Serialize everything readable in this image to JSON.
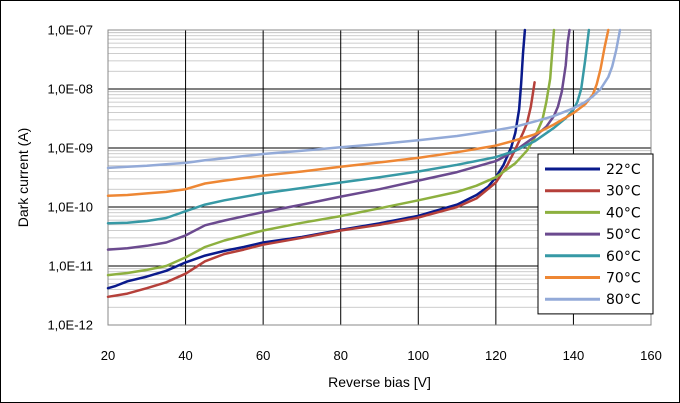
{
  "chart_data": {
    "type": "line",
    "title": "",
    "xlabel": "Reverse bias [V]",
    "ylabel": "Dark current  (A)",
    "xlim": [
      20,
      160
    ],
    "ylim": [
      1e-12,
      1e-07
    ],
    "y_scale": "log",
    "x_ticks": [
      20,
      40,
      60,
      80,
      100,
      120,
      140,
      160
    ],
    "x_tick_labels": [
      "20",
      "40",
      "60",
      "80",
      "100",
      "120",
      "140",
      "160"
    ],
    "y_ticks": [
      1e-12,
      1e-11,
      1e-10,
      1e-09,
      1e-08,
      1e-07
    ],
    "y_tick_labels": [
      "1,0E-12",
      "1,0E-11",
      "1,0E-10",
      "1,0E-09",
      "1,0E-08",
      "1,0E-07"
    ],
    "grid": true,
    "legend_position": "bottom-right",
    "series": [
      {
        "name": "22°C",
        "color": "#0a1a8c",
        "x": [
          20,
          22,
          25,
          30,
          35,
          40,
          45,
          50,
          55,
          60,
          70,
          80,
          90,
          100,
          110,
          115,
          118,
          120,
          122,
          124,
          125,
          126,
          126.5,
          127,
          127.5
        ],
        "y": [
          4.2e-12,
          4.6e-12,
          5.5e-12,
          6.6e-12,
          8.3e-12,
          1.15e-11,
          1.5e-11,
          1.8e-11,
          2.1e-11,
          2.5e-11,
          3.1e-11,
          4.1e-11,
          5.3e-11,
          7.1e-11,
          1.1e-10,
          1.6e-10,
          2.2e-10,
          3.2e-10,
          5.2e-10,
          1.05e-09,
          1.8e-09,
          4.5e-09,
          1.2e-08,
          4e-08,
          1e-07
        ]
      },
      {
        "name": "30°C",
        "color": "#b5403a",
        "x": [
          20,
          25,
          30,
          35,
          40,
          45,
          50,
          55,
          60,
          70,
          80,
          90,
          100,
          110,
          115,
          120,
          123,
          125,
          127,
          128,
          129,
          129.5,
          130
        ],
        "y": [
          3e-12,
          3.4e-12,
          4.2e-12,
          5.3e-12,
          7.4e-12,
          1.2e-11,
          1.6e-11,
          1.9e-11,
          2.3e-11,
          3e-11,
          4e-11,
          5e-11,
          6.6e-11,
          1e-10,
          1.4e-10,
          2.6e-10,
          5.2e-10,
          9.5e-10,
          1.8e-09,
          2.6e-09,
          5e-09,
          8e-09,
          1.3e-08
        ]
      },
      {
        "name": "40°C",
        "color": "#8db03f",
        "x": [
          20,
          25,
          30,
          35,
          40,
          45,
          50,
          60,
          70,
          80,
          90,
          100,
          110,
          115,
          120,
          125,
          128,
          130,
          132,
          133,
          134,
          134.5,
          135
        ],
        "y": [
          7e-12,
          7.6e-12,
          8.6e-12,
          1e-11,
          1.4e-11,
          2.1e-11,
          2.7e-11,
          4e-11,
          5.4e-11,
          7e-11,
          9.5e-11,
          1.3e-10,
          1.8e-10,
          2.3e-10,
          3.2e-10,
          5.5e-10,
          9e-10,
          1.5e-09,
          3e-09,
          6e-09,
          1.5e-08,
          4e-08,
          1e-07
        ]
      },
      {
        "name": "50°C",
        "color": "#6b4a8f",
        "x": [
          20,
          25,
          30,
          35,
          40,
          45,
          50,
          60,
          70,
          80,
          90,
          100,
          110,
          120,
          125,
          130,
          133,
          135,
          136,
          137,
          138,
          138.5,
          139
        ],
        "y": [
          1.9e-11,
          2e-11,
          2.2e-11,
          2.5e-11,
          3.3e-11,
          4.9e-11,
          5.9e-11,
          8.2e-11,
          1.1e-10,
          1.5e-10,
          2e-10,
          2.8e-10,
          3.9e-10,
          6e-10,
          9e-10,
          1.55e-09,
          2.3e-09,
          3.5e-09,
          5e-09,
          9e-09,
          2.5e-08,
          6e-08,
          1e-07
        ]
      },
      {
        "name": "60°C",
        "color": "#3799a5",
        "x": [
          20,
          25,
          30,
          35,
          40,
          45,
          50,
          60,
          70,
          80,
          90,
          100,
          110,
          120,
          125,
          130,
          135,
          138,
          140,
          141,
          142,
          143,
          144
        ],
        "y": [
          5.3e-11,
          5.4e-11,
          5.8e-11,
          6.5e-11,
          8.5e-11,
          1.1e-10,
          1.3e-10,
          1.7e-10,
          2.1e-10,
          2.6e-10,
          3.2e-10,
          4e-10,
          5.2e-10,
          7e-10,
          9e-10,
          1.3e-09,
          2.2e-09,
          3.2e-09,
          4.5e-09,
          6e-09,
          1e-08,
          3e-08,
          1e-07
        ]
      },
      {
        "name": "70°C",
        "color": "#ee8734",
        "x": [
          20,
          25,
          30,
          35,
          40,
          45,
          50,
          60,
          70,
          80,
          90,
          100,
          110,
          120,
          125,
          130,
          135,
          140,
          143,
          145,
          146,
          147,
          148,
          149
        ],
        "y": [
          1.55e-10,
          1.6e-10,
          1.7e-10,
          1.8e-10,
          2e-10,
          2.5e-10,
          2.8e-10,
          3.4e-10,
          4e-10,
          4.8e-10,
          5.7e-10,
          6.8e-10,
          8.5e-10,
          1.1e-09,
          1.35e-09,
          1.7e-09,
          2.5e-09,
          3.9e-09,
          5.5e-09,
          8e-09,
          1.2e-08,
          2.2e-08,
          5e-08,
          1e-07
        ]
      },
      {
        "name": "80°C",
        "color": "#93aad8",
        "x": [
          20,
          25,
          30,
          35,
          40,
          45,
          50,
          60,
          70,
          80,
          90,
          100,
          110,
          120,
          125,
          130,
          135,
          140,
          143,
          145,
          147,
          149,
          150,
          151,
          152
        ],
        "y": [
          4.6e-10,
          4.8e-10,
          5e-10,
          5.3e-10,
          5.6e-10,
          6.2e-10,
          6.7e-10,
          7.9e-10,
          9e-10,
          1.03e-09,
          1.17e-09,
          1.35e-09,
          1.6e-09,
          2e-09,
          2.3e-09,
          2.8e-09,
          3.5e-09,
          4.7e-09,
          6e-09,
          7.5e-09,
          1e-08,
          1.6e-08,
          2.4e-08,
          4.5e-08,
          1e-07
        ]
      }
    ]
  }
}
